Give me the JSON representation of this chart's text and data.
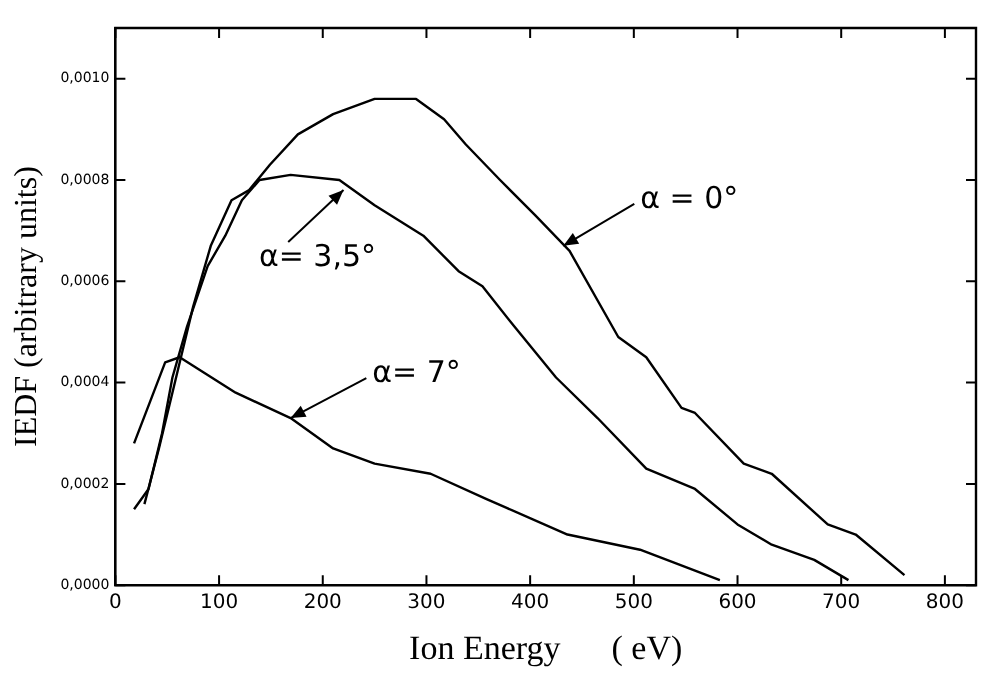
{
  "chart_data": {
    "type": "line",
    "xlabel": "Ion Energy      ( eV)",
    "ylabel": "IEDF (arbitrary units)",
    "xlim": [
      0,
      830
    ],
    "xticks": [
      0,
      100,
      200,
      300,
      400,
      500,
      600,
      700,
      800
    ],
    "ylim": [
      0,
      0.0011
    ],
    "yticks": [
      {
        "value": 0,
        "label": "0,0000"
      },
      {
        "value": 0.0002,
        "label": "0,0002"
      },
      {
        "value": 0.0004,
        "label": "0,0004"
      },
      {
        "value": 0.0006,
        "label": "0,0006"
      },
      {
        "value": 0.0008,
        "label": "0,0008"
      },
      {
        "value": 0.001,
        "label": "0,0010"
      }
    ],
    "grid": false,
    "legend": false,
    "marker": "none",
    "line_style": "solid",
    "series": [
      {
        "color": "#000000",
        "x": [
          28,
          42,
          55,
          75,
          92,
          112,
          129,
          149,
          176,
          210,
          250,
          290,
          317,
          338,
          371,
          405,
          438,
          485,
          512,
          546,
          559,
          606,
          633,
          687,
          714,
          761
        ],
        "values": [
          0.00016,
          0.00027,
          0.00038,
          0.00055,
          0.00067,
          0.00076,
          0.00078,
          0.00083,
          0.00089,
          0.00093,
          0.00096,
          0.00096,
          0.00092,
          0.00087,
          0.0008,
          0.00073,
          0.00066,
          0.00049,
          0.00045,
          0.00035,
          0.00034,
          0.00024,
          0.00022,
          0.00012,
          0.0001,
          2e-05
        ]
      },
      {
        "color": "#000000",
        "x": [
          18,
          32,
          45,
          55,
          69,
          89,
          106,
          122,
          139,
          169,
          216,
          250,
          297,
          331,
          354,
          385,
          425,
          465,
          512,
          559,
          600,
          633,
          674,
          707
        ],
        "values": [
          0.00015,
          0.00019,
          0.0003,
          0.00041,
          0.00051,
          0.00063,
          0.00069,
          0.00076,
          0.0008,
          0.00081,
          0.0008,
          0.00075,
          0.00069,
          0.00062,
          0.00059,
          0.00051,
          0.00041,
          0.00033,
          0.00023,
          0.00019,
          0.00012,
          8e-05,
          5e-05,
          1e-05
        ]
      },
      {
        "color": "#000000",
        "x": [
          18,
          48,
          62,
          116,
          169,
          210,
          250,
          304,
          358,
          436,
          506,
          583
        ],
        "values": [
          0.00028,
          0.00044,
          0.00045,
          0.00038,
          0.00033,
          0.00027,
          0.00024,
          0.00022,
          0.00017,
          0.0001,
          7e-05,
          1e-05
        ]
      }
    ],
    "annotations": [
      {
        "text": "α = 0°",
        "x": 432,
        "y": 0.00067
      },
      {
        "text": "α= 3,5°",
        "x": 220,
        "y": 0.00078
      },
      {
        "text": "α= 7°",
        "x": 169,
        "y": 0.00033
      }
    ]
  }
}
